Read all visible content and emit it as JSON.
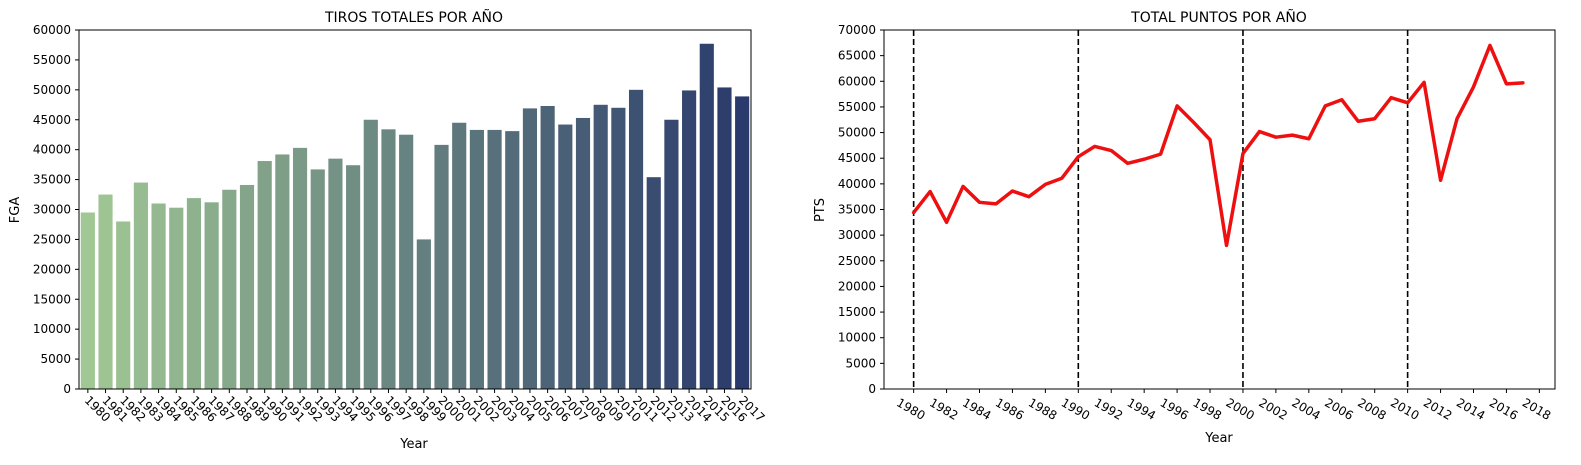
{
  "chart_data": [
    {
      "type": "bar",
      "title": "TIROS TOTALES POR AÑO",
      "xlabel": "Year",
      "ylabel": "FGA",
      "ylim": [
        0,
        60000
      ],
      "yticks": [
        0,
        5000,
        10000,
        15000,
        20000,
        25000,
        30000,
        35000,
        40000,
        45000,
        50000,
        55000,
        60000
      ],
      "categories": [
        "1980",
        "1981",
        "1982",
        "1983",
        "1984",
        "1985",
        "1986",
        "1987",
        "1988",
        "1989",
        "1990",
        "1991",
        "1992",
        "1993",
        "1994",
        "1995",
        "1996",
        "1997",
        "1998",
        "1999",
        "2000",
        "2001",
        "2002",
        "2003",
        "2004",
        "2005",
        "2006",
        "2007",
        "2008",
        "2009",
        "2010",
        "2011",
        "2012",
        "2013",
        "2014",
        "2015",
        "2016",
        "2017"
      ],
      "values": [
        29500,
        32500,
        28000,
        34500,
        31000,
        30300,
        31900,
        31200,
        33300,
        34100,
        38100,
        39200,
        40300,
        36700,
        38500,
        37400,
        45000,
        43400,
        42500,
        25000,
        40800,
        44500,
        43300,
        43300,
        43100,
        46900,
        47300,
        44200,
        45300,
        47500,
        47000,
        50000,
        35400,
        45000,
        49900,
        57700,
        50400,
        48900
      ],
      "palette": "crest",
      "color_start": "#a1c894",
      "color_end": "#2a3a6c",
      "grid": false
    },
    {
      "type": "line",
      "title": "TOTAL PUNTOS POR AÑO",
      "xlabel": "Year",
      "ylabel": "PTS",
      "ylim": [
        0,
        70000
      ],
      "yticks": [
        0,
        5000,
        10000,
        15000,
        20000,
        25000,
        30000,
        35000,
        40000,
        45000,
        50000,
        55000,
        60000,
        65000,
        70000
      ],
      "xticks": [
        1980,
        1982,
        1984,
        1986,
        1988,
        1990,
        1992,
        1994,
        1996,
        1998,
        2000,
        2002,
        2004,
        2006,
        2008,
        2010,
        2012,
        2014,
        2016,
        2018
      ],
      "vlines": [
        1980,
        1990,
        2000,
        2010
      ],
      "series": [
        {
          "color": "#ee1010",
          "x": [
            1980,
            1981,
            1982,
            1983,
            1984,
            1985,
            1986,
            1987,
            1988,
            1989,
            1990,
            1991,
            1992,
            1993,
            1994,
            1995,
            1996,
            1997,
            1998,
            1999,
            2000,
            2001,
            2002,
            2003,
            2004,
            2005,
            2006,
            2007,
            2008,
            2009,
            2010,
            2011,
            2012,
            2013,
            2014,
            2015,
            2016,
            2017
          ],
          "y": [
            34400,
            38500,
            32500,
            39500,
            36400,
            36100,
            38600,
            37500,
            39900,
            41100,
            45300,
            47300,
            46500,
            44000,
            44800,
            45800,
            55200,
            52000,
            48600,
            28000,
            45900,
            50200,
            49100,
            49500,
            48800,
            55200,
            56400,
            52200,
            52700,
            56800,
            55800,
            59800,
            40700,
            52700,
            58900,
            67000,
            59500,
            59700
          ]
        }
      ],
      "grid": false
    }
  ]
}
